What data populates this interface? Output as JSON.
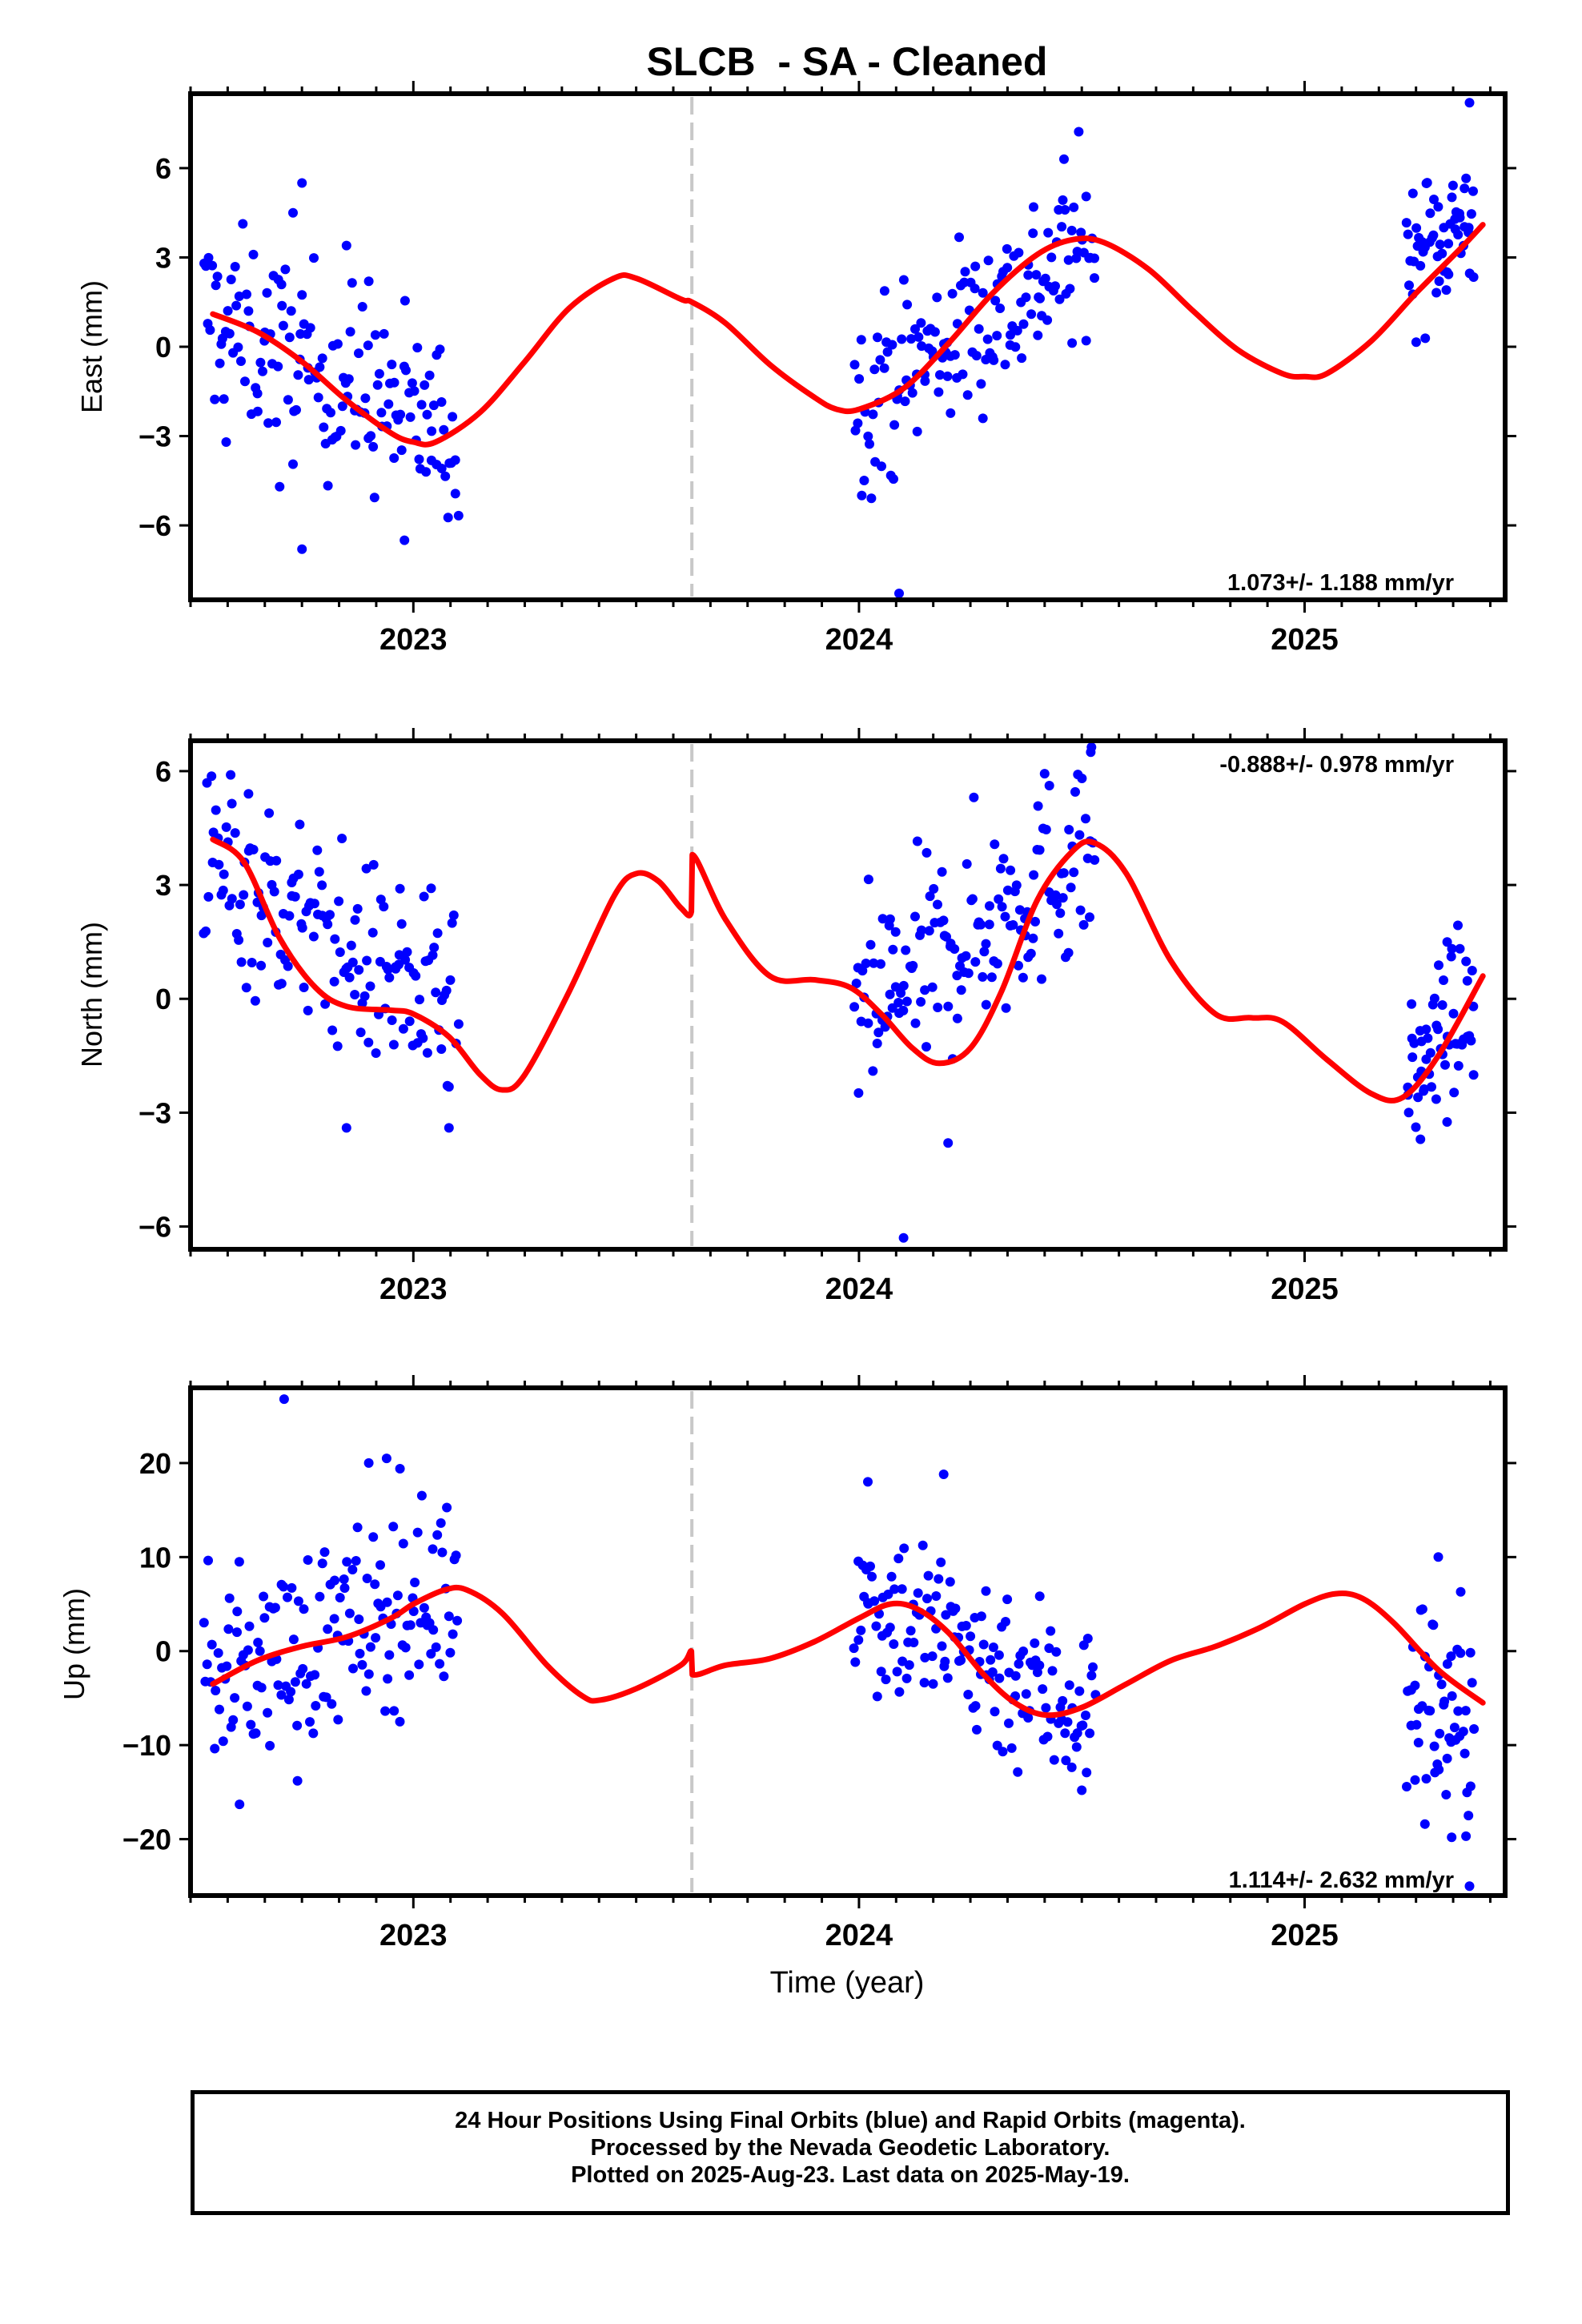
{
  "chart_data": {
    "title": "SLCB  - SA - Cleaned",
    "xlabel": "Time (year)",
    "x_tick_labels": [
      "2023",
      "2024",
      "2025"
    ],
    "xlim": [
      2022.5,
      2025.45
    ],
    "break_line_x": 2023.625,
    "colors": {
      "points": "#0000ff",
      "fit": "#ff0000",
      "break_line": "#c8c8c8"
    },
    "panels": [
      {
        "type": "scatter",
        "ylabel": "East (mm)",
        "ylim": [
          -8.5,
          8.5
        ],
        "yticks": [
          -6,
          -3,
          0,
          3,
          6
        ],
        "rate_label": "1.073+/- 1.188 mm/yr",
        "rate_position": "bottom-right",
        "fit_curve": [
          [
            2022.55,
            1.1
          ],
          [
            2022.65,
            0.5
          ],
          [
            2022.75,
            -0.5
          ],
          [
            2022.85,
            -1.8
          ],
          [
            2022.95,
            -2.9
          ],
          [
            2023.0,
            -3.2
          ],
          [
            2023.05,
            -3.2
          ],
          [
            2023.15,
            -2.2
          ],
          [
            2023.25,
            -0.5
          ],
          [
            2023.35,
            1.3
          ],
          [
            2023.45,
            2.3
          ],
          [
            2023.5,
            2.3
          ],
          [
            2023.6,
            1.6
          ],
          [
            2023.625,
            1.5
          ],
          [
            2023.7,
            0.8
          ],
          [
            2023.8,
            -0.6
          ],
          [
            2023.9,
            -1.7
          ],
          [
            2023.95,
            -2.1
          ],
          [
            2024.0,
            -2.1
          ],
          [
            2024.1,
            -1.4
          ],
          [
            2024.2,
            0.1
          ],
          [
            2024.3,
            1.8
          ],
          [
            2024.4,
            3.1
          ],
          [
            2024.48,
            3.6
          ],
          [
            2024.55,
            3.5
          ],
          [
            2024.65,
            2.6
          ],
          [
            2024.75,
            1.2
          ],
          [
            2024.85,
            -0.1
          ],
          [
            2024.95,
            -0.9
          ],
          [
            2025.0,
            -1.0
          ],
          [
            2025.05,
            -0.9
          ],
          [
            2025.15,
            0.2
          ],
          [
            2025.25,
            1.8
          ],
          [
            2025.35,
            3.3
          ],
          [
            2025.4,
            4.1
          ]
        ],
        "points": {
          "segments": [
            {
              "x_start": 2022.53,
              "x_end": 2023.1,
              "y_at_start": 1.1,
              "y_at_end": -3.1,
              "spread": 1.6,
              "count": 150
            },
            {
              "x_start": 2023.99,
              "x_end": 2024.53,
              "y_at_start": -2.0,
              "y_at_end": 3.6,
              "spread": 1.5,
              "count": 150
            },
            {
              "x_start": 2025.23,
              "x_end": 2025.38,
              "y_at_start": 3.0,
              "y_at_end": 4.4,
              "spread": 1.2,
              "count": 55
            }
          ],
          "outliers": [
            [
              2022.75,
              5.5
            ],
            [
              2022.73,
              4.5
            ],
            [
              2022.85,
              3.4
            ],
            [
              2022.75,
              -6.8
            ],
            [
              2022.98,
              -6.5
            ],
            [
              2024.09,
              -8.3
            ],
            [
              2025.37,
              8.2
            ],
            [
              2024.46,
              6.3
            ],
            [
              2022.9,
              2.2
            ],
            [
              2022.7,
              -4.7
            ],
            [
              2022.58,
              -3.2
            ]
          ]
        }
      },
      {
        "type": "scatter",
        "ylabel": "North (mm)",
        "ylim": [
          -6.6,
          6.8
        ],
        "yticks": [
          -6,
          -3,
          0,
          3,
          6
        ],
        "rate_label": "-0.888+/- 0.978 mm/yr",
        "rate_position": "top-right",
        "fit_curve": [
          [
            2022.55,
            4.2
          ],
          [
            2022.62,
            3.6
          ],
          [
            2022.7,
            1.6
          ],
          [
            2022.78,
            0.3
          ],
          [
            2022.85,
            -0.2
          ],
          [
            2022.95,
            -0.3
          ],
          [
            2023.0,
            -0.4
          ],
          [
            2023.08,
            -1.0
          ],
          [
            2023.15,
            -2.0
          ],
          [
            2023.2,
            -2.4
          ],
          [
            2023.25,
            -2.0
          ],
          [
            2023.35,
            0.2
          ],
          [
            2023.45,
            2.7
          ],
          [
            2023.5,
            3.3
          ],
          [
            2023.55,
            3.1
          ],
          [
            2023.6,
            2.4
          ],
          [
            2023.624,
            2.3
          ],
          [
            2023.626,
            3.8
          ],
          [
            2023.7,
            2.1
          ],
          [
            2023.8,
            0.6
          ],
          [
            2023.9,
            0.5
          ],
          [
            2023.98,
            0.3
          ],
          [
            2024.05,
            -0.4
          ],
          [
            2024.12,
            -1.3
          ],
          [
            2024.18,
            -1.7
          ],
          [
            2024.25,
            -1.3
          ],
          [
            2024.32,
            0.2
          ],
          [
            2024.4,
            2.6
          ],
          [
            2024.48,
            3.9
          ],
          [
            2024.53,
            4.1
          ],
          [
            2024.6,
            3.3
          ],
          [
            2024.7,
            1.0
          ],
          [
            2024.8,
            -0.4
          ],
          [
            2024.88,
            -0.5
          ],
          [
            2024.95,
            -0.6
          ],
          [
            2025.05,
            -1.6
          ],
          [
            2025.15,
            -2.5
          ],
          [
            2025.22,
            -2.6
          ],
          [
            2025.3,
            -1.5
          ],
          [
            2025.4,
            0.6
          ]
        ],
        "points": {
          "segments": [
            {
              "x_start": 2022.53,
              "x_end": 2023.1,
              "y_at_start": 3.6,
              "y_at_end": -0.6,
              "spread": 1.3,
              "count": 150
            },
            {
              "x_start": 2023.99,
              "x_end": 2024.53,
              "y_at_start": -0.6,
              "y_at_end": 4.2,
              "spread": 1.4,
              "count": 150
            },
            {
              "x_start": 2025.23,
              "x_end": 2025.38,
              "y_at_start": -2.2,
              "y_at_end": 0.0,
              "spread": 1.0,
              "count": 55
            }
          ],
          "outliers": [
            [
              2022.59,
              5.9
            ],
            [
              2022.63,
              5.4
            ],
            [
              2024.1,
              -6.3
            ],
            [
              2024.52,
              6.5
            ],
            [
              2022.85,
              -3.4
            ],
            [
              2023.08,
              -3.4
            ],
            [
              2024.2,
              -3.8
            ],
            [
              2025.26,
              -3.7
            ],
            [
              2025.32,
              1.5
            ],
            [
              2024.07,
              2.1
            ],
            [
              2022.97,
              2.9
            ]
          ]
        }
      },
      {
        "type": "scatter",
        "ylabel": "Up (mm)",
        "ylim": [
          -26,
          28
        ],
        "yticks": [
          -20,
          -10,
          0,
          10,
          20
        ],
        "rate_label": "1.114+/- 2.632 mm/yr",
        "rate_position": "bottom-right",
        "fit_curve": [
          [
            2022.55,
            -3.5
          ],
          [
            2022.65,
            -1.0
          ],
          [
            2022.75,
            0.5
          ],
          [
            2022.85,
            1.5
          ],
          [
            2022.95,
            3.5
          ],
          [
            2023.0,
            5.0
          ],
          [
            2023.07,
            6.5
          ],
          [
            2023.12,
            6.5
          ],
          [
            2023.2,
            4.0
          ],
          [
            2023.3,
            -1.5
          ],
          [
            2023.38,
            -4.8
          ],
          [
            2023.42,
            -5.2
          ],
          [
            2023.5,
            -4.0
          ],
          [
            2023.6,
            -1.5
          ],
          [
            2023.624,
            0.0
          ],
          [
            2023.626,
            -2.5
          ],
          [
            2023.7,
            -1.5
          ],
          [
            2023.8,
            -0.8
          ],
          [
            2023.9,
            1.0
          ],
          [
            2024.0,
            3.5
          ],
          [
            2024.07,
            5.0
          ],
          [
            2024.13,
            4.5
          ],
          [
            2024.2,
            2.0
          ],
          [
            2024.28,
            -2.5
          ],
          [
            2024.35,
            -5.5
          ],
          [
            2024.42,
            -6.8
          ],
          [
            2024.5,
            -6.0
          ],
          [
            2024.6,
            -3.5
          ],
          [
            2024.7,
            -1.0
          ],
          [
            2024.8,
            0.5
          ],
          [
            2024.9,
            2.5
          ],
          [
            2025.0,
            5.0
          ],
          [
            2025.07,
            6.1
          ],
          [
            2025.13,
            5.6
          ],
          [
            2025.2,
            3.0
          ],
          [
            2025.3,
            -2.0
          ],
          [
            2025.4,
            -5.5
          ]
        ],
        "points": {
          "segments": [
            {
              "x_start": 2022.53,
              "x_end": 2023.1,
              "y_at_start": -3.0,
              "y_at_end": 6.5,
              "spread": 5.0,
              "count": 150
            },
            {
              "x_start": 2023.99,
              "x_end": 2024.53,
              "y_at_start": 6.5,
              "y_at_end": -7.0,
              "spread": 5.0,
              "count": 150
            },
            {
              "x_start": 2025.23,
              "x_end": 2025.38,
              "y_at_start": -5.0,
              "y_at_end": -8.0,
              "spread": 6.0,
              "count": 55
            }
          ],
          "outliers": [
            [
              2022.71,
              26.8
            ],
            [
              2022.94,
              20.5
            ],
            [
              2022.97,
              19.4
            ],
            [
              2022.9,
              20.0
            ],
            [
              2022.61,
              -16.3
            ],
            [
              2022.74,
              -13.8
            ],
            [
              2025.37,
              -25.0
            ],
            [
              2025.3,
              10.0
            ],
            [
              2024.19,
              18.8
            ],
            [
              2025.33,
              -19.8
            ],
            [
              2024.5,
              -14.8
            ],
            [
              2024.02,
              18.0
            ]
          ]
        }
      }
    ]
  },
  "footer": {
    "line1": "24 Hour Positions Using Final Orbits (blue) and Rapid Orbits (magenta).",
    "line2": "Processed by the Nevada Geodetic Laboratory.",
    "line3": "Plotted on 2025-Aug-23. Last data on 2025-May-19."
  }
}
